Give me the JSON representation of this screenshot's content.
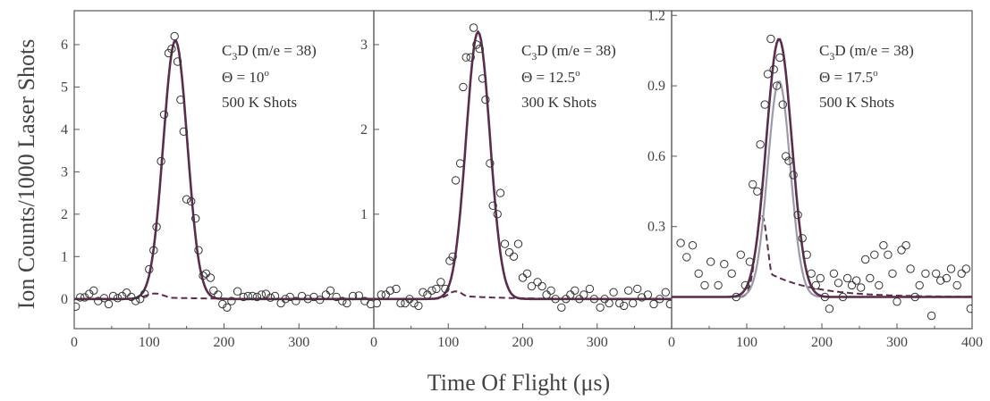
{
  "figure": {
    "xlabel": "Time Of Flight (μs)",
    "ylabel": "Ion Counts/1000 Laser Shots"
  },
  "colors": {
    "fit": "#5a2e4a",
    "dashed": "#5a2e4a",
    "light_fit": "#9a9aa8",
    "points": "#333333",
    "frame": "#555555"
  },
  "chart_data": [
    {
      "type": "scatter",
      "annotation": {
        "species_main": "C",
        "species_sub": "3",
        "species_rest": "D (m/e = 38)",
        "theta_text": "Θ = 10",
        "theta_sup": "o",
        "shots": "500 K Shots"
      },
      "xlim": [
        0,
        400
      ],
      "ylim": [
        -0.7,
        6.8
      ],
      "x_ticks": [
        "0",
        "100",
        "200",
        "300"
      ],
      "y_ticks": [
        0,
        1,
        2,
        3,
        4,
        5,
        6
      ],
      "peak": {
        "amplitude": 6.1,
        "center": 135,
        "sigma": 16
      },
      "dashed": {
        "amplitude": 0.13,
        "center": 108,
        "sigma": 12,
        "tail": 0.04
      },
      "points": [
        [
          2,
          -0.18
        ],
        [
          8,
          0.04
        ],
        [
          14,
          0.04
        ],
        [
          20,
          0.12
        ],
        [
          26,
          0.2
        ],
        [
          32,
          -0.05
        ],
        [
          40,
          0.02
        ],
        [
          46,
          -0.12
        ],
        [
          52,
          0.07
        ],
        [
          58,
          0.02
        ],
        [
          64,
          0.07
        ],
        [
          70,
          0.15
        ],
        [
          76,
          0.05
        ],
        [
          82,
          -0.05
        ],
        [
          88,
          0.0
        ],
        [
          94,
          0.12
        ],
        [
          100,
          0.7
        ],
        [
          106,
          1.15
        ],
        [
          110,
          1.7
        ],
        [
          116,
          3.25
        ],
        [
          120,
          4.35
        ],
        [
          126,
          5.8
        ],
        [
          130,
          5.9
        ],
        [
          134,
          6.2
        ],
        [
          138,
          5.6
        ],
        [
          142,
          4.7
        ],
        [
          146,
          3.95
        ],
        [
          150,
          2.35
        ],
        [
          156,
          2.3
        ],
        [
          162,
          1.9
        ],
        [
          166,
          1.15
        ],
        [
          172,
          0.55
        ],
        [
          176,
          0.6
        ],
        [
          182,
          0.5
        ],
        [
          186,
          0.2
        ],
        [
          192,
          0.1
        ],
        [
          198,
          -0.12
        ],
        [
          204,
          -0.2
        ],
        [
          210,
          -0.05
        ],
        [
          218,
          0.18
        ],
        [
          226,
          0.05
        ],
        [
          232,
          0.07
        ],
        [
          238,
          0.07
        ],
        [
          244,
          0.05
        ],
        [
          250,
          0.1
        ],
        [
          256,
          0.12
        ],
        [
          262,
          0.03
        ],
        [
          268,
          0.07
        ],
        [
          276,
          -0.1
        ],
        [
          282,
          0.0
        ],
        [
          288,
          0.05
        ],
        [
          296,
          -0.05
        ],
        [
          304,
          0.07
        ],
        [
          312,
          0.0
        ],
        [
          320,
          0.05
        ],
        [
          328,
          -0.02
        ],
        [
          336,
          0.1
        ],
        [
          342,
          0.2
        ],
        [
          350,
          0.05
        ],
        [
          358,
          -0.05
        ],
        [
          364,
          -0.1
        ],
        [
          372,
          0.07
        ],
        [
          380,
          0.08
        ],
        [
          388,
          -0.05
        ],
        [
          396,
          -0.12
        ]
      ]
    },
    {
      "type": "scatter",
      "annotation": {
        "species_main": "C",
        "species_sub": "3",
        "species_rest": "D (m/e = 38)",
        "theta_text": "Θ = 12.5",
        "theta_sup": "o",
        "shots": "300 K Shots"
      },
      "xlim": [
        0,
        400
      ],
      "ylim": [
        -0.35,
        3.4
      ],
      "x_ticks": [
        "0",
        "100",
        "200",
        "300"
      ],
      "y_ticks": [
        1,
        2,
        3
      ],
      "peak": {
        "amplitude": 3.15,
        "center": 140,
        "sigma": 16
      },
      "dashed": {
        "amplitude": 0.09,
        "center": 110,
        "sigma": 10,
        "tail": 0.04
      },
      "points": [
        [
          4,
          -0.05
        ],
        [
          10,
          0.05
        ],
        [
          16,
          0.05
        ],
        [
          22,
          0.1
        ],
        [
          30,
          0.12
        ],
        [
          36,
          -0.05
        ],
        [
          42,
          -0.05
        ],
        [
          48,
          0.0
        ],
        [
          54,
          -0.05
        ],
        [
          60,
          -0.08
        ],
        [
          66,
          0.08
        ],
        [
          72,
          0.05
        ],
        [
          78,
          0.1
        ],
        [
          84,
          0.12
        ],
        [
          90,
          0.2
        ],
        [
          96,
          0.12
        ],
        [
          102,
          0.45
        ],
        [
          106,
          0.5
        ],
        [
          110,
          1.4
        ],
        [
          116,
          1.6
        ],
        [
          120,
          2.5
        ],
        [
          124,
          2.85
        ],
        [
          130,
          2.85
        ],
        [
          134,
          3.2
        ],
        [
          138,
          3.0
        ],
        [
          142,
          2.95
        ],
        [
          146,
          2.6
        ],
        [
          150,
          2.35
        ],
        [
          156,
          1.6
        ],
        [
          160,
          1.1
        ],
        [
          166,
          1.0
        ],
        [
          170,
          1.25
        ],
        [
          176,
          0.65
        ],
        [
          182,
          0.55
        ],
        [
          188,
          0.5
        ],
        [
          194,
          0.65
        ],
        [
          200,
          0.25
        ],
        [
          206,
          0.3
        ],
        [
          212,
          0.15
        ],
        [
          220,
          0.2
        ],
        [
          226,
          0.15
        ],
        [
          232,
          0.05
        ],
        [
          238,
          0.1
        ],
        [
          244,
          0.0
        ],
        [
          252,
          -0.1
        ],
        [
          258,
          0.0
        ],
        [
          264,
          0.05
        ],
        [
          270,
          0.1
        ],
        [
          276,
          0.0
        ],
        [
          282,
          0.05
        ],
        [
          290,
          0.12
        ],
        [
          296,
          0.0
        ],
        [
          304,
          -0.1
        ],
        [
          310,
          0.0
        ],
        [
          316,
          -0.05
        ],
        [
          322,
          0.08
        ],
        [
          330,
          -0.05
        ],
        [
          336,
          -0.08
        ],
        [
          342,
          0.1
        ],
        [
          348,
          -0.05
        ],
        [
          354,
          0.12
        ],
        [
          360,
          0.02
        ],
        [
          368,
          0.05
        ],
        [
          376,
          -0.06
        ],
        [
          384,
          0.0
        ],
        [
          392,
          0.08
        ],
        [
          398,
          -0.06
        ]
      ]
    },
    {
      "type": "scatter",
      "annotation": {
        "species_main": "C",
        "species_sub": "3",
        "species_rest": "D (m/e = 38)",
        "theta_text": "Θ = 17.5",
        "theta_sup": "o",
        "shots": "500 K Shots"
      },
      "xlim": [
        0,
        400
      ],
      "ylim": [
        -0.135,
        1.22
      ],
      "x_ticks": [
        "0",
        "100",
        "200",
        "300",
        "400"
      ],
      "y_ticks": [
        "0.3",
        "0.6",
        "0.9",
        "1.2"
      ],
      "y_tick_values": [
        0.3,
        0.6,
        0.9,
        1.2
      ],
      "peak": {
        "amplitude": 1.1,
        "center": 143,
        "sigma": 17
      },
      "light_peak": {
        "amplitude": 0.92,
        "center": 143,
        "sigma": 15
      },
      "dashed": {
        "amplitude": 0.35,
        "center": 120,
        "sigma": 8,
        "tail": 0.12
      },
      "points": [
        [
          12,
          0.23
        ],
        [
          20,
          0.17
        ],
        [
          28,
          0.22
        ],
        [
          36,
          0.1
        ],
        [
          44,
          0.05
        ],
        [
          52,
          0.15
        ],
        [
          62,
          0.05
        ],
        [
          70,
          0.14
        ],
        [
          80,
          0.1
        ],
        [
          86,
          0.0
        ],
        [
          92,
          0.18
        ],
        [
          98,
          0.05
        ],
        [
          104,
          0.15
        ],
        [
          108,
          0.48
        ],
        [
          114,
          0.45
        ],
        [
          118,
          0.65
        ],
        [
          124,
          0.82
        ],
        [
          128,
          0.95
        ],
        [
          132,
          1.1
        ],
        [
          136,
          0.97
        ],
        [
          140,
          0.9
        ],
        [
          144,
          1.02
        ],
        [
          148,
          0.82
        ],
        [
          152,
          0.6
        ],
        [
          156,
          0.58
        ],
        [
          162,
          0.52
        ],
        [
          168,
          0.35
        ],
        [
          174,
          0.25
        ],
        [
          180,
          0.18
        ],
        [
          186,
          0.1
        ],
        [
          192,
          0.05
        ],
        [
          198,
          0.08
        ],
        [
          204,
          0.0
        ],
        [
          210,
          -0.05
        ],
        [
          216,
          0.1
        ],
        [
          222,
          0.06
        ],
        [
          228,
          0.0
        ],
        [
          234,
          0.08
        ],
        [
          240,
          0.05
        ],
        [
          246,
          0.07
        ],
        [
          252,
          0.04
        ],
        [
          258,
          0.16
        ],
        [
          264,
          0.08
        ],
        [
          270,
          0.18
        ],
        [
          276,
          0.05
        ],
        [
          282,
          0.22
        ],
        [
          288,
          0.18
        ],
        [
          294,
          0.1
        ],
        [
          300,
          -0.02
        ],
        [
          306,
          0.2
        ],
        [
          312,
          0.22
        ],
        [
          318,
          0.12
        ],
        [
          324,
          0.0
        ],
        [
          330,
          0.05
        ],
        [
          338,
          0.1
        ],
        [
          346,
          -0.08
        ],
        [
          352,
          0.1
        ],
        [
          358,
          0.07
        ],
        [
          366,
          0.08
        ],
        [
          372,
          0.12
        ],
        [
          380,
          0.05
        ],
        [
          386,
          0.1
        ],
        [
          392,
          0.12
        ],
        [
          398,
          -0.05
        ]
      ]
    }
  ]
}
